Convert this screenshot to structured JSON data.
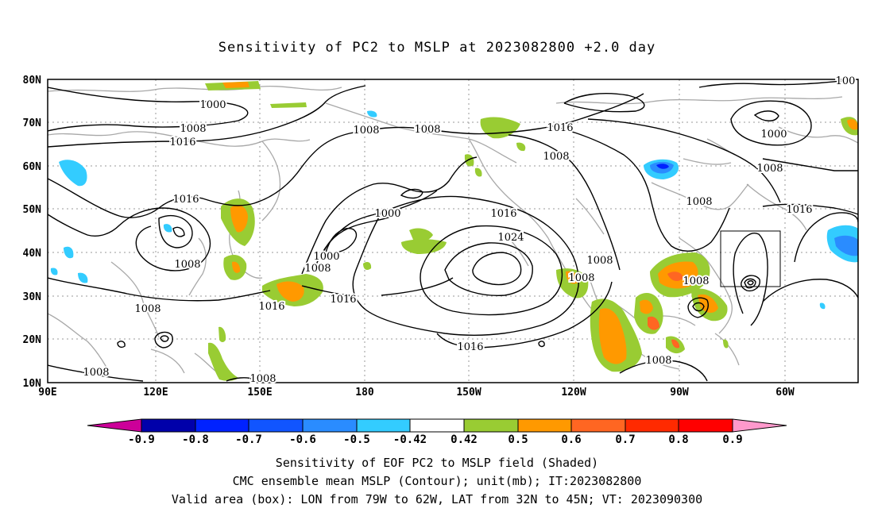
{
  "title": "Sensitivity of PC2 to MSLP at 2023082800 +2.0 day",
  "lat_labels": [
    "80N",
    "70N",
    "60N",
    "50N",
    "40N",
    "30N",
    "20N",
    "10N"
  ],
  "lon_labels": [
    "90E",
    "120E",
    "150E",
    "180",
    "150W",
    "120W",
    "90W",
    "60W"
  ],
  "contour_labels": [
    "1000",
    "1008",
    "1016",
    "1008",
    "1008",
    "1016",
    "1008",
    "1016",
    "1000",
    "1016",
    "1008",
    "1016",
    "1024",
    "1000",
    "1008",
    "1008",
    "1016",
    "1016",
    "1008",
    "1008",
    "1008",
    "1016",
    "1008",
    "1008",
    "1008",
    "1016",
    "1008",
    "1000",
    "1008",
    "100"
  ],
  "colorbar": {
    "ticks": [
      "-0.9",
      "-0.8",
      "-0.7",
      "-0.6",
      "-0.5",
      "-0.42",
      "0.42",
      "0.5",
      "0.6",
      "0.7",
      "0.8",
      "0.9"
    ],
    "colors": {
      "below": "#cc0099",
      "bins": [
        "#0000aa",
        "#0022ff",
        "#1155ff",
        "#2a8cff",
        "#33ccff",
        "#ffffff",
        "#99cc33",
        "#ff9900",
        "#ff6622",
        "#ff2a00",
        "#ff0000"
      ],
      "above": "#ff99cc"
    }
  },
  "valid_box": {
    "lon_from": "79W",
    "lon_to": "62W",
    "lat_from": "32N",
    "lat_to": "45N"
  },
  "captions": [
    "Sensitivity of EOF PC2 to MSLP field (Shaded)",
    "CMC ensemble mean MSLP (Contour); unit(mb); IT:2023082800",
    "Valid area (box): LON from 79W to 62W, LAT from 32N to 45N; VT: 2023090300"
  ]
}
